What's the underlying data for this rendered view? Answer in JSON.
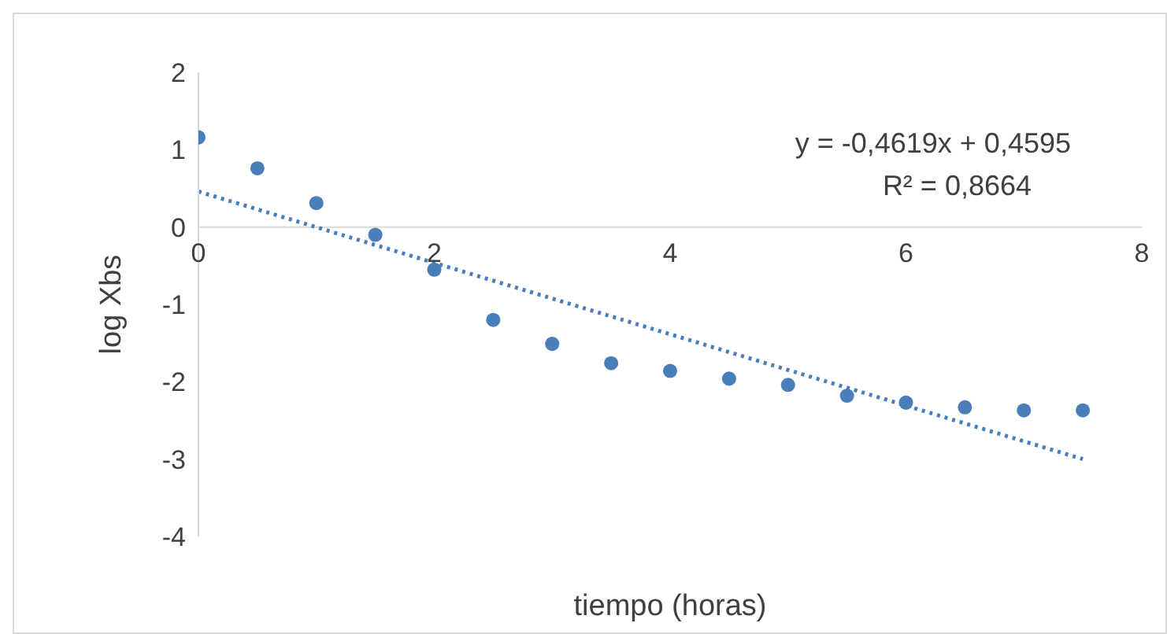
{
  "chart_data": {
    "type": "scatter",
    "xlabel": "tiempo (horas)",
    "ylabel": "log Xbs",
    "x": [
      0,
      0.5,
      1,
      1.5,
      2,
      2.5,
      3,
      3.5,
      4,
      4.5,
      5,
      5.5,
      6,
      6.5,
      7,
      7.5
    ],
    "series": [
      {
        "color": "#4a7ebb",
        "marker": "circle",
        "values": [
          1.16,
          0.76,
          0.31,
          -0.1,
          -0.55,
          -1.2,
          -1.51,
          -1.76,
          -1.86,
          -1.96,
          -2.04,
          -2.18,
          -2.27,
          -2.33,
          -2.37,
          -2.37
        ]
      },
      {
        "type": "line",
        "color": "#4a7ebb",
        "line_style": "dotted",
        "marker": "none",
        "x": [
          0,
          7.5
        ],
        "values": [
          0.46,
          -3.0
        ]
      }
    ],
    "xlim": [
      0,
      8
    ],
    "xticks": [
      0,
      2,
      4,
      6,
      8
    ],
    "ylim": [
      -4,
      2
    ],
    "yticks": [
      -4,
      -3,
      -2,
      -1,
      0,
      1,
      2
    ],
    "annotations": [
      "y = -0,4619x + 0,4595",
      "R² = 0,8664"
    ]
  }
}
